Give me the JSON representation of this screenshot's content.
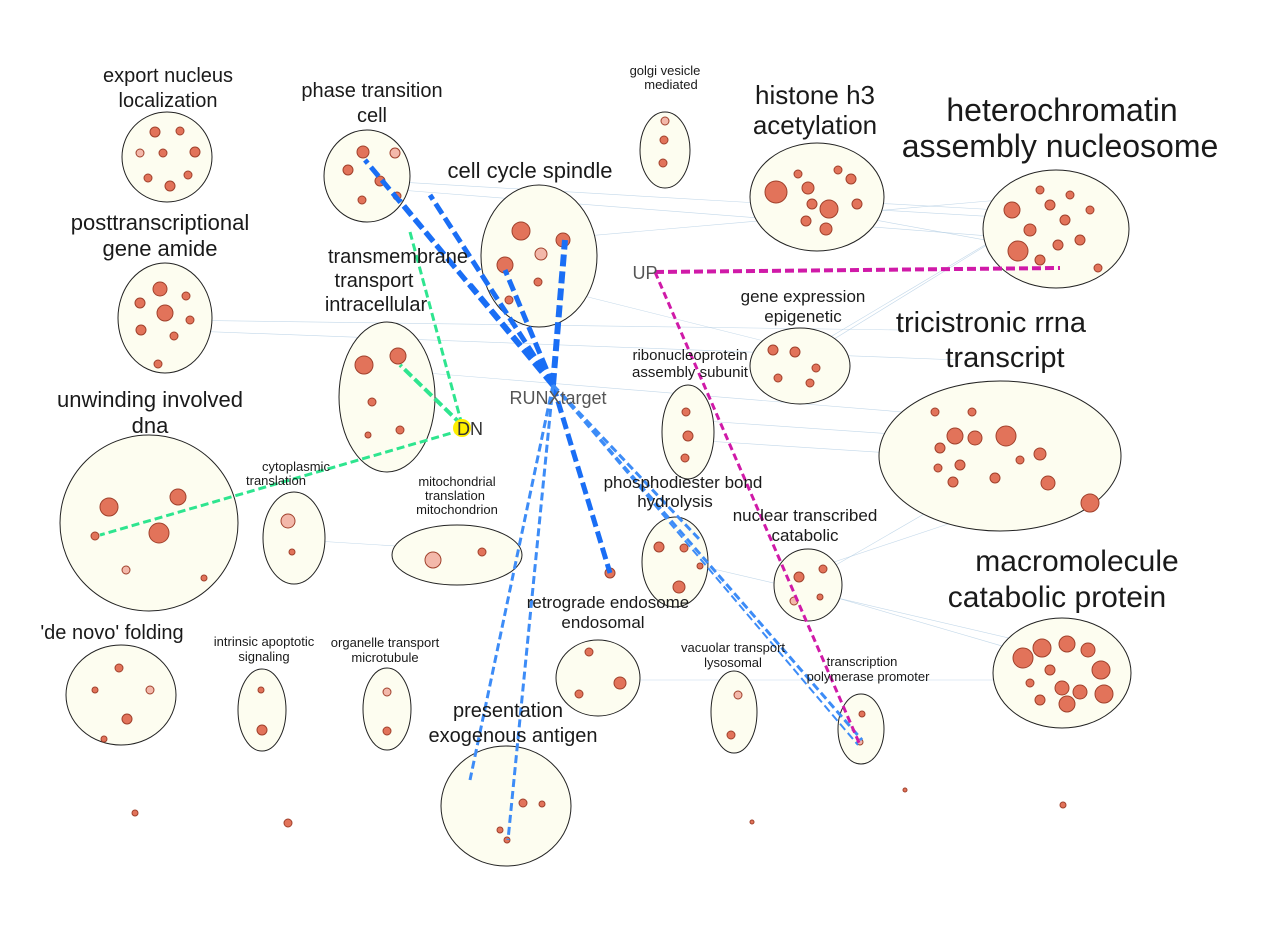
{
  "hubs": {
    "runx": "RUNXtarget",
    "dn": "DN",
    "up": "UP"
  },
  "colors": {
    "runx_edge": "#1a6ef5",
    "runx_edge_light": "#3d8cf7",
    "dn_edge": "#2ee58f",
    "up_edge": "#d01aa8",
    "dn_hub": "#ffee00"
  },
  "clusters": {
    "export": [
      "export nucleus",
      "localization"
    ],
    "phase": [
      "phase transition",
      "cell"
    ],
    "golgi": [
      "golgi vesicle",
      "mediated"
    ],
    "histone": [
      "histone h3",
      "acetylation"
    ],
    "hetero": [
      "heterochromatin",
      "assembly nucleosome"
    ],
    "spindle": [
      "cell cycle spindle"
    ],
    "posttx": [
      "posttranscriptional",
      "gene amide"
    ],
    "transmem": [
      "transmembrane",
      "transport",
      "intracellular"
    ],
    "geneexp": [
      "gene expression",
      "epigenetic"
    ],
    "tricis": [
      "tricistronic rrna",
      "transcript"
    ],
    "ribonuc": [
      "ribonucleoprotein",
      "assembly subunit"
    ],
    "unwind": [
      "unwinding involved",
      "dna"
    ],
    "cyto": [
      "cytoplasmic",
      "translation"
    ],
    "mito": [
      "mitochondrial",
      "translation",
      "mitochondrion"
    ],
    "phospho": [
      "phosphodiester bond",
      "hydrolysis"
    ],
    "nuclear": [
      "nuclear transcribed",
      "catabolic"
    ],
    "macro": [
      "macromolecule",
      "catabolic protein"
    ],
    "retro": [
      "retrograde endosome",
      "endosomal"
    ],
    "denovo": [
      "'de novo' folding"
    ],
    "intrinsic": [
      "intrinsic apoptotic",
      "signaling"
    ],
    "organelle": [
      "organelle transport",
      "microtubule"
    ],
    "vacuolar": [
      "vacuolar transport",
      "lysosomal"
    ],
    "transcr": [
      "transcription",
      "polymerase promoter"
    ],
    "present": [
      "presentation",
      "exogenous antigen"
    ]
  }
}
